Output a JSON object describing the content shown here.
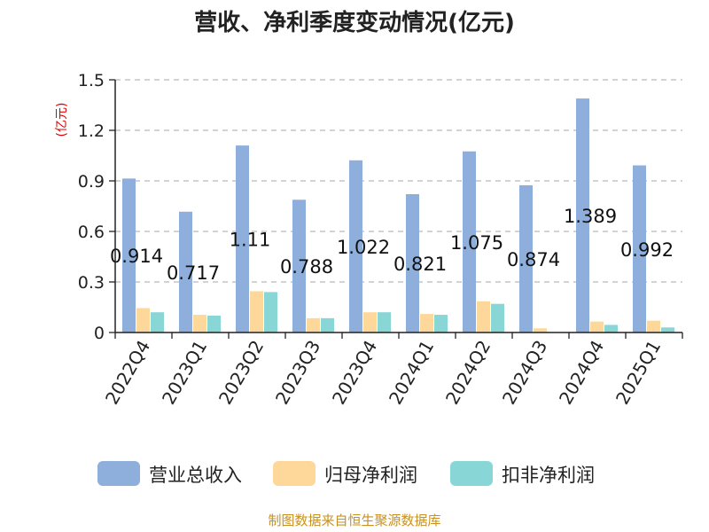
{
  "chart_data": {
    "type": "bar",
    "title": "营收、净利季度变动情况(亿元)",
    "ylabel": "(亿元)",
    "categories": [
      "2022Q4",
      "2023Q1",
      "2023Q2",
      "2023Q3",
      "2023Q4",
      "2024Q1",
      "2024Q2",
      "2024Q3",
      "2024Q4",
      "2025Q1"
    ],
    "ylim": [
      0,
      1.5
    ],
    "yticks": [
      "0",
      "0.3",
      "0.6",
      "0.9",
      "1.2",
      "1.5"
    ],
    "ytick_values": [
      0,
      0.3,
      0.6,
      0.9,
      1.2,
      1.5
    ],
    "grid": "horizontal dashed",
    "legend_position": "bottom",
    "series": [
      {
        "name": "营业总收入",
        "color": "#8eaedc",
        "values": [
          0.914,
          0.717,
          1.11,
          0.788,
          1.022,
          0.821,
          1.075,
          0.874,
          1.389,
          0.992
        ],
        "labels": [
          "0.914",
          "0.717",
          "1.11",
          "0.788",
          "1.022",
          "0.821",
          "1.075",
          "0.874",
          "1.389",
          "0.992"
        ]
      },
      {
        "name": "归母净利润",
        "color": "#fdd89a",
        "values": [
          0.145,
          0.105,
          0.245,
          0.085,
          0.12,
          0.11,
          0.185,
          0.025,
          0.065,
          0.07
        ]
      },
      {
        "name": "扣非净利润",
        "color": "#88d6d6",
        "values": [
          0.12,
          0.1,
          0.24,
          0.085,
          0.12,
          0.105,
          0.17,
          0.0,
          0.045,
          0.03
        ]
      }
    ]
  },
  "footer": {
    "source": "制图数据来自恒生聚源数据库"
  }
}
